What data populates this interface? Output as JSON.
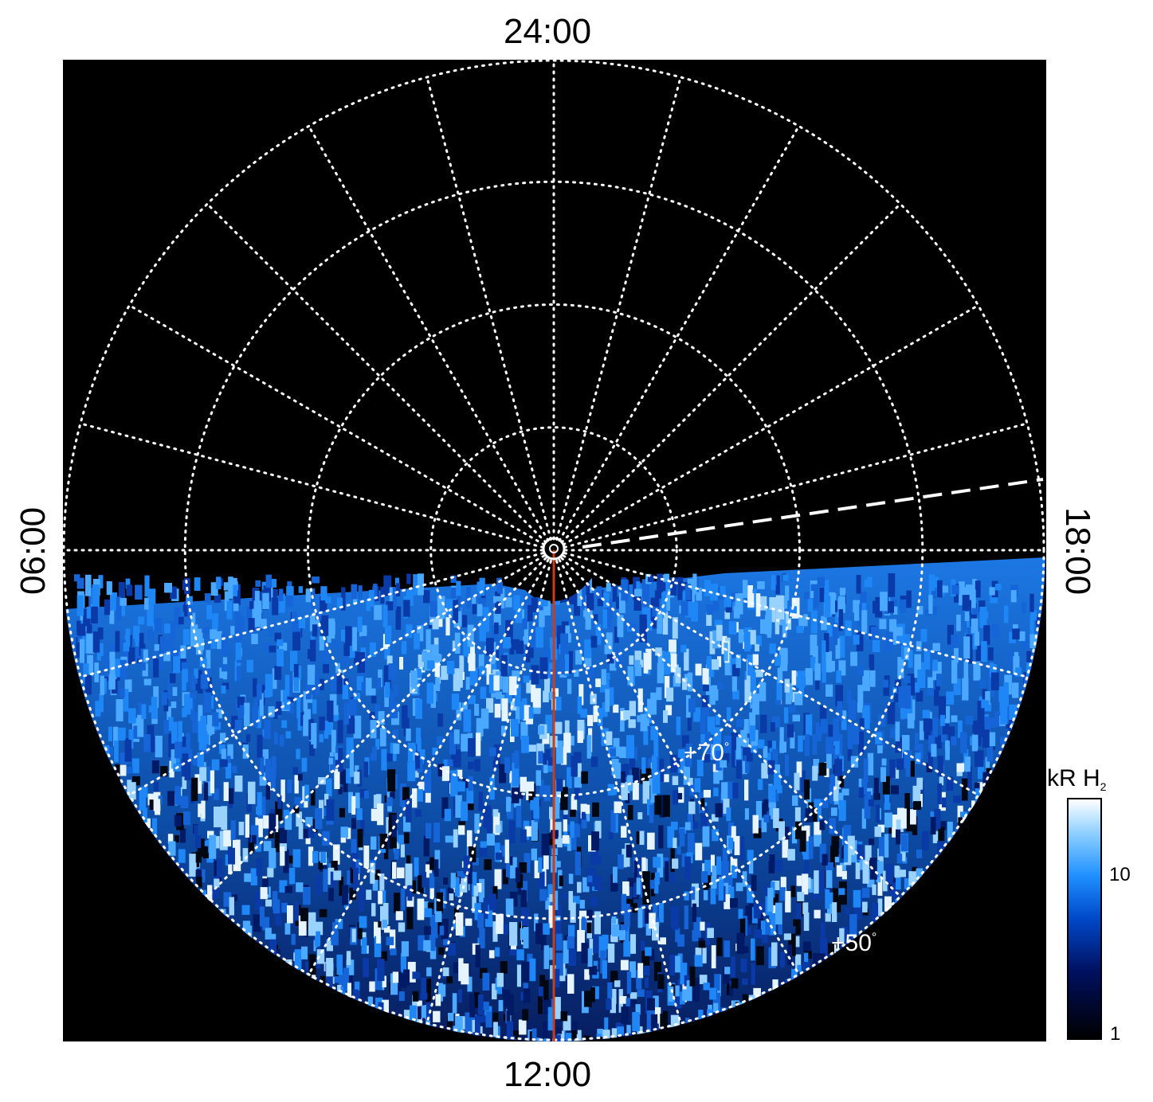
{
  "local_time_labels": {
    "top": "24:00",
    "bottom": "12:00",
    "left": "06:00",
    "right": "18:00"
  },
  "latitude_labels": {
    "inner": "+70",
    "outer": "+50",
    "degree_symbol": "°"
  },
  "colorbar": {
    "unit": "kR H",
    "unit_subscript": "2",
    "scale": "log",
    "ticks": [
      {
        "value": "10"
      },
      {
        "value": "1"
      }
    ],
    "gradient_colors": [
      "#000000",
      "#001060",
      "#0048c8",
      "#1e90ff",
      "#8fd0ff",
      "#ffffff"
    ]
  },
  "colors": {
    "background": "#000000",
    "grid": "#ffffff",
    "meridian_line": "#d43a10",
    "emission_low": "#0a2a8a",
    "emission_mid": "#1e7ef0",
    "emission_high": "#cde9ff"
  },
  "grid": {
    "style": "dotted",
    "circles": 4,
    "spokes": 24
  }
}
